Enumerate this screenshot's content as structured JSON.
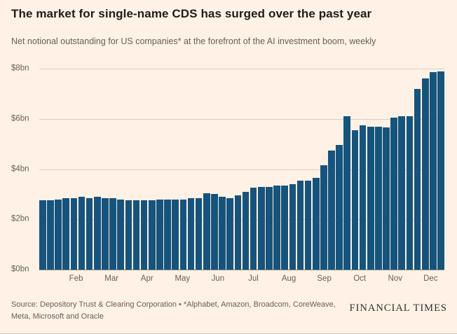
{
  "header": {
    "title": "The market for single-name CDS has surged over the past year",
    "subtitle": "Net notional outstanding for US companies* at the forefront of the AI investment boom, weekly"
  },
  "chart_data": {
    "type": "bar",
    "title": "The market for single-name CDS has surged over the past year",
    "subtitle": "Net notional outstanding for US companies* at the forefront of the AI investment boom, weekly",
    "unit": "$bn",
    "ylim": [
      0,
      8
    ],
    "grid": true,
    "bar_color": "#16547D",
    "background_color": "#FFF1E5",
    "gridline_color": "#d8cec3",
    "yticks": [
      {
        "value": 0,
        "label": "$0bn"
      },
      {
        "value": 2,
        "label": "$2bn"
      },
      {
        "value": 4,
        "label": "$4bn"
      },
      {
        "value": 6,
        "label": "$6bn"
      },
      {
        "value": 8,
        "label": "$8bn"
      }
    ],
    "xticks": [
      {
        "label": "Feb",
        "pct": 9.1
      },
      {
        "label": "Mar",
        "pct": 17.85
      },
      {
        "label": "Apr",
        "pct": 26.6
      },
      {
        "label": "May",
        "pct": 35.35
      },
      {
        "label": "Jun",
        "pct": 44.1
      },
      {
        "label": "Jul",
        "pct": 52.85
      },
      {
        "label": "Aug",
        "pct": 61.6
      },
      {
        "label": "Sep",
        "pct": 70.35
      },
      {
        "label": "Oct",
        "pct": 79.1
      },
      {
        "label": "Nov",
        "pct": 87.85
      },
      {
        "label": "Dec",
        "pct": 96.6
      }
    ],
    "values": [
      2.75,
      2.75,
      2.8,
      2.85,
      2.85,
      2.9,
      2.85,
      2.9,
      2.85,
      2.85,
      2.8,
      2.75,
      2.75,
      2.75,
      2.75,
      2.8,
      2.8,
      2.8,
      2.8,
      2.85,
      2.85,
      3.05,
      3.0,
      2.9,
      2.85,
      2.95,
      3.1,
      3.25,
      3.3,
      3.3,
      3.35,
      3.35,
      3.4,
      3.55,
      3.55,
      3.65,
      4.15,
      4.75,
      4.95,
      6.1,
      5.55,
      5.75,
      5.7,
      5.7,
      5.65,
      6.05,
      6.1,
      6.1,
      7.2,
      7.6,
      7.85,
      7.9
    ]
  },
  "footer": {
    "source": "Source: Depository Trust & Clearing Corporation • *Alphabet, Amazon, Broadcom, CoreWeave, Meta, Microsoft and Oracle",
    "brand": "FINANCIAL TIMES"
  }
}
